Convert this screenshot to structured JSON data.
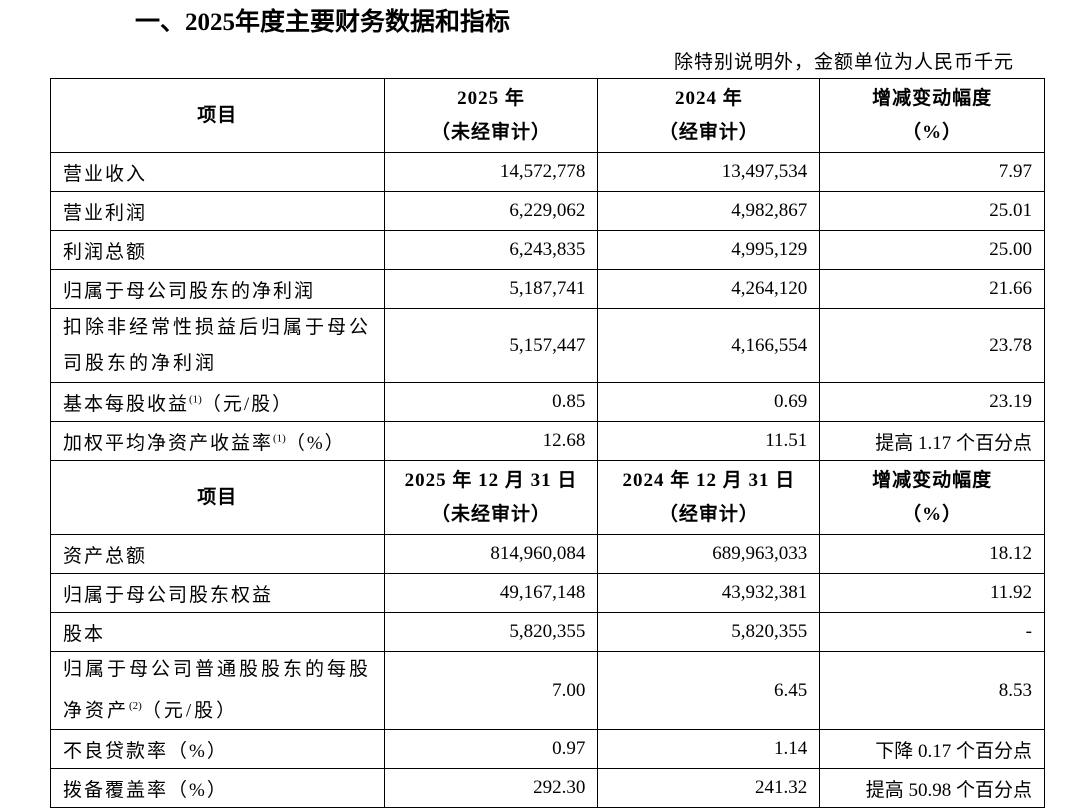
{
  "header": {
    "title": "一、2025年度主要财务数据和指标",
    "note": "除特别说明外，金额单位为人民币千元"
  },
  "table": {
    "sections": [
      {
        "head": {
          "item": "项目",
          "columns": [
            {
              "top": "2025 年",
              "bottom": "（未经审计）"
            },
            {
              "top": "2024 年",
              "bottom": "（经审计）"
            },
            {
              "top": "增减变动幅度",
              "bottom": "（%）"
            }
          ]
        },
        "rows": [
          {
            "label": "营业收入",
            "cells": [
              "14,572,778",
              "13,497,534",
              "7.97"
            ]
          },
          {
            "label": "营业利润",
            "cells": [
              "6,229,062",
              "4,982,867",
              "25.01"
            ]
          },
          {
            "label": "利润总额",
            "cells": [
              "6,243,835",
              "4,995,129",
              "25.00"
            ]
          },
          {
            "label": "归属于母公司股东的净利润",
            "cells": [
              "5,187,741",
              "4,264,120",
              "21.66"
            ]
          },
          {
            "label": "扣除非经常性损益后归属于母公司股东的净利润",
            "cells": [
              "5,157,447",
              "4,166,554",
              "23.78"
            ]
          },
          {
            "label": "基本每股收益",
            "note": "(1)",
            "suffix": "（元/股）",
            "cells": [
              "0.85",
              "0.69",
              "23.19"
            ]
          },
          {
            "label": "加权平均净资产收益率",
            "note": "(1)",
            "suffix": "（%）",
            "cells": [
              "12.68",
              "11.51",
              "提高 1.17 个百分点"
            ]
          }
        ]
      },
      {
        "head": {
          "item": "项目",
          "columns": [
            {
              "top": "2025 年 12 月 31 日",
              "bottom": "（未经审计）"
            },
            {
              "top": "2024 年 12 月 31 日",
              "bottom": "（经审计）"
            },
            {
              "top": "增减变动幅度",
              "bottom": "（%）"
            }
          ]
        },
        "rows": [
          {
            "label": "资产总额",
            "cells": [
              "814,960,084",
              "689,963,033",
              "18.12"
            ]
          },
          {
            "label": "归属于母公司股东权益",
            "cells": [
              "49,167,148",
              "43,932,381",
              "11.92"
            ]
          },
          {
            "label": "股本",
            "cells": [
              "5,820,355",
              "5,820,355",
              "-"
            ]
          },
          {
            "label": "归属于母公司普通股股东的每股净资产",
            "note": "(2)",
            "suffix": "（元/股）",
            "cells": [
              "7.00",
              "6.45",
              "8.53"
            ]
          },
          {
            "label": "不良贷款率（%）",
            "cells": [
              "0.97",
              "1.14",
              "下降 0.17 个百分点"
            ]
          },
          {
            "label": "拨备覆盖率（%）",
            "cells": [
              "292.30",
              "241.32",
              "提高 50.98 个百分点"
            ]
          }
        ]
      }
    ]
  }
}
